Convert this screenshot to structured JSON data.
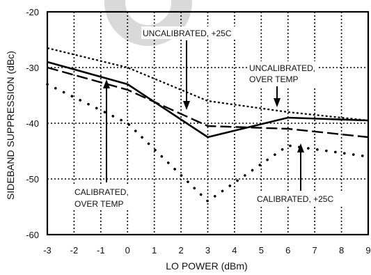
{
  "chart_data": {
    "type": "line",
    "xlabel": "LO POWER (dBm)",
    "ylabel": "SIDEBAND SUPPRESSION (dBc)",
    "xlim": [
      -3,
      9
    ],
    "ylim": [
      -60,
      -20
    ],
    "xticks": [
      "-3",
      "-2",
      "-1",
      "0",
      "1",
      "2",
      "3",
      "4",
      "5",
      "6",
      "7",
      "8",
      "9"
    ],
    "yticks": [
      "-20",
      "-30",
      "-40",
      "-50",
      "-60"
    ],
    "grid": true,
    "series": [
      {
        "name": "UNCALIBRATED, +25C",
        "style": "solid",
        "x": [
          -3,
          0,
          3,
          6,
          9
        ],
        "y": [
          -29,
          -33,
          -42.5,
          -39,
          -39.5
        ]
      },
      {
        "name": "UNCALIBRATED, OVER TEMP",
        "style": "short-dash",
        "x": [
          -3,
          0,
          3,
          6,
          9
        ],
        "y": [
          -26.5,
          -30,
          -36,
          -38,
          -39.5
        ]
      },
      {
        "name": "CALIBRATED, OVER TEMP",
        "style": "long-dash",
        "x": [
          -3,
          0,
          3,
          6,
          9
        ],
        "y": [
          -30,
          -34,
          -40.5,
          -41,
          -42.5
        ]
      },
      {
        "name": "CALIBRATED, +25C",
        "style": "dotted",
        "x": [
          -3,
          0,
          3,
          6,
          9
        ],
        "y": [
          -33,
          -40,
          -54,
          -44,
          -46
        ]
      }
    ],
    "annotations": [
      {
        "text": "UNCALIBRATED, +25C",
        "series": 0
      },
      {
        "text": "UNCALIBRATED,",
        "text2": "OVER TEMP",
        "series": 1
      },
      {
        "text": "CALIBRATED,",
        "text2": "OVER TEMP",
        "series": 2
      },
      {
        "text": "CALIBRATED, +25C",
        "series": 3
      }
    ]
  }
}
